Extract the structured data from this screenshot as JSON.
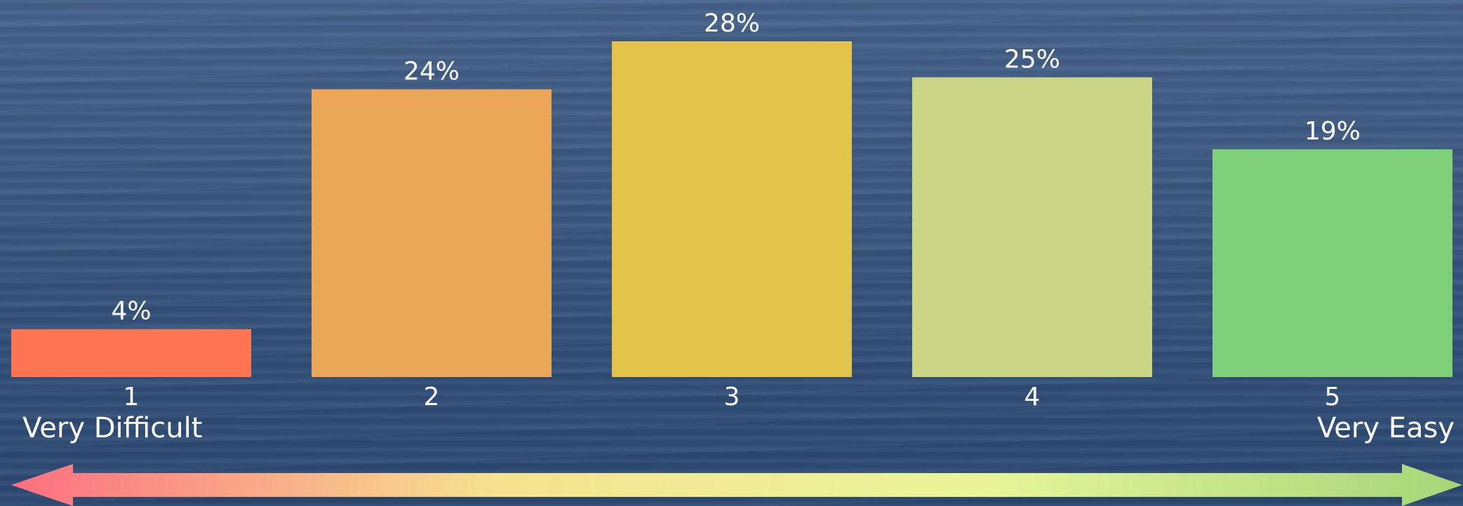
{
  "chart_data": {
    "type": "bar",
    "categories": [
      "1",
      "2",
      "3",
      "4",
      "5"
    ],
    "values": [
      4,
      24,
      28,
      25,
      19
    ],
    "value_labels": [
      "4%",
      "24%",
      "28%",
      "25%",
      "19%"
    ],
    "colors": [
      "#fd7651",
      "#eba65a",
      "#e3c349",
      "#cad686",
      "#7dcf78"
    ],
    "ylim": [
      0,
      28
    ],
    "grid": false,
    "title": "",
    "xlabel": "",
    "ylabel": ""
  },
  "scale": {
    "left_label": "Very Difficult",
    "right_label": "Very Easy",
    "arrow_colors": [
      "#fc6f80",
      "#f6e28f",
      "#e9f59b",
      "#a5d677"
    ]
  }
}
